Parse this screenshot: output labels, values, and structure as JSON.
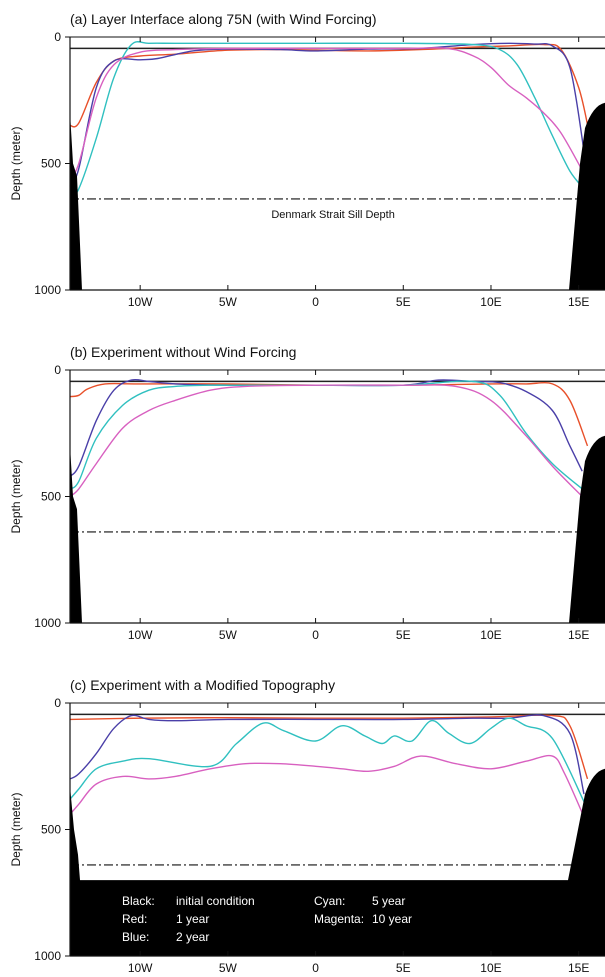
{
  "chart_data": [
    {
      "type": "line",
      "title": "(a) Layer Interface along 75N (with Wind Forcing)",
      "ylabel": "Depth (meter)",
      "xlim": [
        -14,
        16.5
      ],
      "ylim": [
        0,
        1000
      ],
      "x_ticks": [
        "10W",
        "5W",
        "0",
        "5E",
        "10E",
        "15E"
      ],
      "y_ticks": [
        "0",
        "500",
        "1000"
      ],
      "sill_depth": 640,
      "annotation": "Denmark Strait Sill Depth",
      "series": [
        {
          "color": "#222222",
          "x": [
            -14,
            16.5
          ],
          "y": [
            45,
            45
          ]
        },
        {
          "color": "#e8502a",
          "x": [
            -14,
            -13.5,
            -12.5,
            -11.5,
            -10,
            -8,
            -5,
            -2,
            0,
            3,
            6,
            9,
            11,
            13,
            14,
            15,
            15.6
          ],
          "y": [
            350,
            340,
            180,
            95,
            75,
            68,
            52,
            50,
            52,
            55,
            50,
            40,
            35,
            30,
            50,
            200,
            380
          ]
        },
        {
          "color": "#4a3fa8",
          "x": [
            -14,
            -13.5,
            -12.5,
            -11.5,
            -10,
            -9,
            -7,
            -5,
            -2,
            0,
            3,
            6,
            9,
            11,
            12.5,
            13.5,
            14.5,
            15.3
          ],
          "y": [
            590,
            520,
            200,
            95,
            90,
            85,
            55,
            48,
            50,
            55,
            48,
            45,
            30,
            25,
            28,
            35,
            120,
            450
          ]
        },
        {
          "color": "#30c0c0",
          "x": [
            -14,
            -13.5,
            -12.5,
            -11.5,
            -10.5,
            -9.5,
            -8,
            -5,
            0,
            5,
            9,
            10.5,
            11.5,
            12.5,
            13.5,
            14.5,
            15.3
          ],
          "y": [
            630,
            600,
            400,
            160,
            30,
            25,
            25,
            25,
            25,
            25,
            30,
            50,
            110,
            240,
            390,
            530,
            600
          ]
        },
        {
          "color": "#d860c0",
          "x": [
            -14,
            -13.5,
            -12.5,
            -11.5,
            -10,
            -8,
            -5,
            0,
            5,
            7.5,
            9,
            10,
            11,
            12,
            13,
            14,
            15.3
          ],
          "y": [
            560,
            500,
            240,
            110,
            60,
            50,
            45,
            45,
            45,
            45,
            75,
            120,
            190,
            240,
            300,
            380,
            540
          ]
        }
      ]
    },
    {
      "type": "line",
      "title": "(b) Experiment without Wind Forcing",
      "ylabel": "Depth (meter)",
      "xlim": [
        -14,
        16.5
      ],
      "ylim": [
        0,
        1000
      ],
      "x_ticks": [
        "10W",
        "5W",
        "0",
        "5E",
        "10E",
        "15E"
      ],
      "y_ticks": [
        "0",
        "500",
        "1000"
      ],
      "sill_depth": 640,
      "annotation": "",
      "series": [
        {
          "color": "#222222",
          "x": [
            -14,
            16.5
          ],
          "y": [
            45,
            45
          ]
        },
        {
          "color": "#e8502a",
          "x": [
            -14,
            -13.5,
            -13,
            -12,
            -10,
            -5,
            0,
            5,
            10,
            12,
            13.5,
            14.5,
            15.5
          ],
          "y": [
            105,
            100,
            75,
            55,
            55,
            55,
            60,
            60,
            55,
            55,
            55,
            120,
            300
          ]
        },
        {
          "color": "#4a3fa8",
          "x": [
            -14,
            -13.5,
            -12.5,
            -11.5,
            -10.5,
            -9.5,
            -8,
            -5,
            0,
            5,
            7,
            9,
            10.5,
            12,
            13.5,
            14.5,
            15.2
          ],
          "y": [
            420,
            380,
            200,
            80,
            40,
            45,
            55,
            60,
            60,
            60,
            40,
            45,
            50,
            85,
            160,
            300,
            400
          ]
        },
        {
          "color": "#30c0c0",
          "x": [
            -14,
            -13.5,
            -12.5,
            -11,
            -9.5,
            -8,
            -6,
            -4,
            0,
            5,
            9,
            10.5,
            12,
            13.5,
            15.2
          ],
          "y": [
            470,
            440,
            270,
            140,
            80,
            65,
            60,
            60,
            60,
            60,
            45,
            100,
            250,
            370,
            470
          ]
        },
        {
          "color": "#d860c0",
          "x": [
            -14,
            -13.5,
            -12.5,
            -11,
            -9.5,
            -8,
            -6,
            -4,
            0,
            5,
            8,
            10,
            12,
            13.5,
            15.2
          ],
          "y": [
            500,
            470,
            370,
            230,
            160,
            120,
            80,
            65,
            60,
            60,
            65,
            120,
            260,
            380,
            500
          ]
        }
      ]
    },
    {
      "type": "line",
      "title": "(c) Experiment with a Modified Topography",
      "ylabel": "Depth (meter)",
      "xlim": [
        -14,
        16.5
      ],
      "ylim": [
        0,
        1000
      ],
      "x_ticks": [
        "10W",
        "5W",
        "0",
        "5E",
        "10E",
        "15E"
      ],
      "y_ticks": [
        "0",
        "500",
        "1000"
      ],
      "sill_depth": 640,
      "annotation": "",
      "legend": [
        {
          "label": "Black:",
          "value": "initial condition"
        },
        {
          "label": "Red:",
          "value": "1 year"
        },
        {
          "label": "Blue:",
          "value": "2 year"
        },
        {
          "label": "Cyan:",
          "value": "5 year"
        },
        {
          "label": "Magenta:",
          "value": "10 year"
        }
      ],
      "series": [
        {
          "color": "#222222",
          "x": [
            -14,
            16.5
          ],
          "y": [
            45,
            45
          ]
        },
        {
          "color": "#e8502a",
          "x": [
            -14,
            -10,
            -5,
            0,
            5,
            10,
            13.5,
            14.5,
            15.5
          ],
          "y": [
            65,
            60,
            58,
            60,
            60,
            55,
            50,
            90,
            300
          ]
        },
        {
          "color": "#4a3fa8",
          "x": [
            -14,
            -13.5,
            -12.5,
            -11.5,
            -10.5,
            -9.5,
            -8,
            -5,
            0,
            5,
            9,
            11,
            13,
            14.5,
            15.3
          ],
          "y": [
            300,
            280,
            200,
            100,
            50,
            65,
            70,
            65,
            65,
            65,
            60,
            60,
            50,
            120,
            360
          ]
        },
        {
          "color": "#30c0c0",
          "x": [
            -14,
            -13.5,
            -12.5,
            -11,
            -9.5,
            -6,
            -4.5,
            -3,
            -1.8,
            0,
            1.5,
            2.8,
            3.8,
            4.5,
            5.5,
            6.6,
            7.6,
            8.8,
            10,
            11,
            12,
            13.5,
            15.3
          ],
          "y": [
            380,
            340,
            260,
            230,
            220,
            250,
            160,
            80,
            110,
            150,
            90,
            130,
            160,
            130,
            150,
            70,
            120,
            160,
            100,
            60,
            90,
            140,
            390
          ]
        },
        {
          "color": "#d860c0",
          "x": [
            -14,
            -13.5,
            -12.5,
            -11,
            -9.5,
            -8,
            -6,
            -4,
            -2,
            0,
            1.5,
            3,
            4.5,
            6,
            8,
            10,
            12,
            13.5,
            14.2,
            15.3
          ],
          "y": [
            440,
            400,
            320,
            290,
            300,
            290,
            260,
            240,
            240,
            250,
            260,
            270,
            250,
            210,
            240,
            260,
            230,
            210,
            280,
            450
          ]
        }
      ]
    }
  ]
}
